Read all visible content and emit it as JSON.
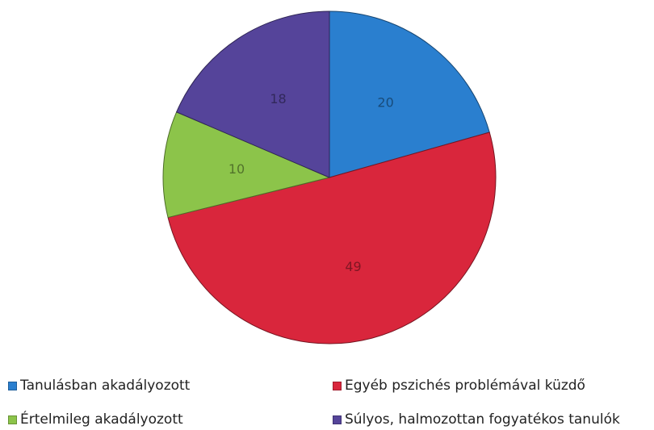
{
  "chart_data": {
    "type": "pie",
    "title": "",
    "start_angle_deg": 0,
    "direction": "clockwise",
    "slices": [
      {
        "label": "Tanulásban akadályozott",
        "value": 20,
        "value_label": "20",
        "color": "#2a7fcf"
      },
      {
        "label": "Egyéb pszichés problémával küzdő",
        "value": 49,
        "value_label": "49",
        "color": "#d9263c"
      },
      {
        "label": "Értelmileg akadályozott",
        "value": 10,
        "value_label": "10",
        "color": "#8cc44a"
      },
      {
        "label": "Súlyos, halmozottan fogyatékos tanulók",
        "value": 18,
        "value_label": "18",
        "color": "#55449a"
      }
    ],
    "legend": {
      "placement": "bottom",
      "items": [
        "Tanulásban akadályozott",
        "Egyéb pszichés problémával küzdő",
        "Értelmileg akadályozott",
        "Súlyos, halmozottan fogyatékos tanulók"
      ]
    }
  }
}
